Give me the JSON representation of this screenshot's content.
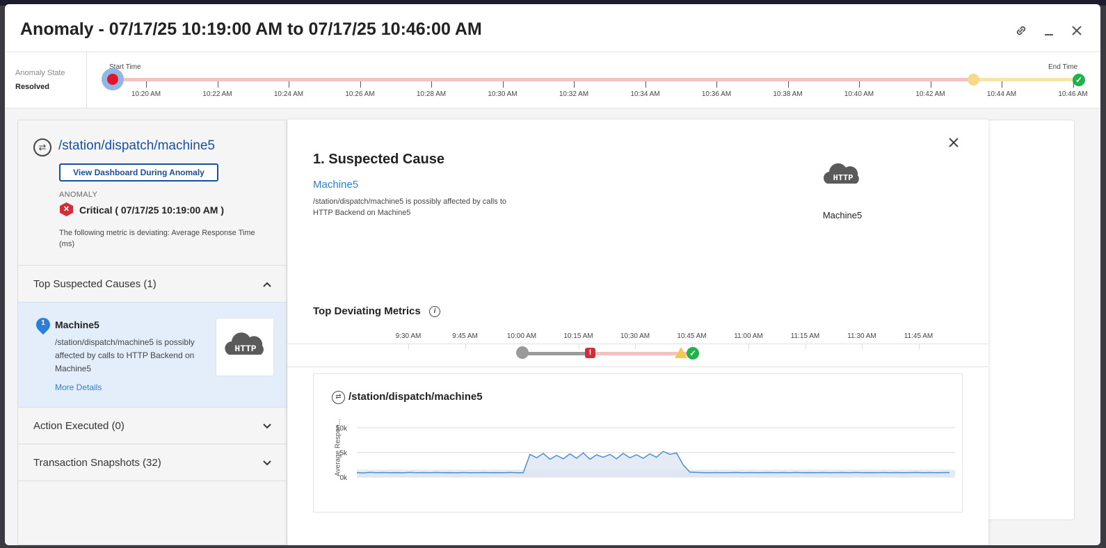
{
  "modal": {
    "title": "Anomaly - 07/17/25 10:19:00 AM to 07/17/25 10:46:00 AM",
    "icons": [
      "link-icon",
      "minimize-icon",
      "close-icon"
    ]
  },
  "timeline": {
    "state_label": "Anomaly State",
    "state_value": "Resolved",
    "start_label": "Start Time",
    "end_label": "End Time",
    "ticks": [
      "10:20 AM",
      "10:22 AM",
      "10:24 AM",
      "10:26 AM",
      "10:28 AM",
      "10:30 AM",
      "10:32 AM",
      "10:34 AM",
      "10:36 AM",
      "10:38 AM",
      "10:40 AM",
      "10:42 AM",
      "10:44 AM",
      "10:46 AM"
    ]
  },
  "left": {
    "path": "/station/dispatch/machine5",
    "dashboard_button": "View Dashboard During Anomaly",
    "anomaly_label": "ANOMALY",
    "critical_text": "Critical ( 07/17/25 10:19:00 AM )",
    "metric_text": "The following metric is deviating: Average Response Time (ms)",
    "sections": [
      {
        "title": "Top Suspected Causes (1)",
        "expanded": true
      },
      {
        "title": "Action Executed (0)",
        "expanded": false
      },
      {
        "title": "Transaction Snapshots (32)",
        "expanded": false
      }
    ],
    "cause": {
      "number": "1",
      "name": "Machine5",
      "description": "/station/dispatch/machine5 is possibly affected by calls to HTTP Backend on Machine5",
      "more": "More Details",
      "icon_text": "HTTP"
    }
  },
  "detail": {
    "heading": "1. Suspected Cause",
    "cause_link": "Machine5",
    "cause_desc": "/station/dispatch/machine5 is possibly affected by calls to HTTP Backend on Machine5",
    "icon_text": "HTTP",
    "icon_label": "Machine5",
    "top_metrics_title": "Top Deviating Metrics",
    "metric_ticks": [
      "9:30 AM",
      "9:45 AM",
      "10:00 AM",
      "10:15 AM",
      "10:30 AM",
      "10:45 AM",
      "11:00 AM",
      "11:15 AM",
      "11:30 AM",
      "11:45 AM"
    ]
  },
  "chart_data": {
    "type": "area",
    "title": "/station/dispatch/machine5",
    "ylabel": "Average Respon...",
    "yticks": [
      "10k",
      "5k",
      "0k"
    ],
    "ylim": [
      0,
      10000
    ],
    "series": [
      {
        "values": [
          900,
          850,
          950,
          880,
          920,
          870,
          900,
          860,
          940,
          890,
          910,
          870,
          930,
          880,
          900,
          860,
          920,
          890,
          870,
          910,
          880,
          900,
          870,
          930,
          890,
          880,
          4600,
          3900,
          4800,
          3600,
          4400,
          3700,
          4700,
          3800,
          4900,
          3600,
          4500,
          4000,
          4600,
          3700,
          4800,
          3900,
          4500,
          3800,
          4700,
          4000,
          5200,
          4600,
          4900,
          2500,
          1000,
          950,
          900,
          880,
          920,
          870,
          900,
          930,
          880,
          910,
          870,
          900,
          920,
          880,
          910,
          870,
          930,
          890,
          900,
          880,
          920,
          870,
          900,
          910,
          880,
          930,
          870,
          900,
          890,
          910,
          880,
          920,
          870,
          900,
          930,
          880,
          910,
          870,
          900,
          920
        ]
      }
    ],
    "grid": true
  }
}
